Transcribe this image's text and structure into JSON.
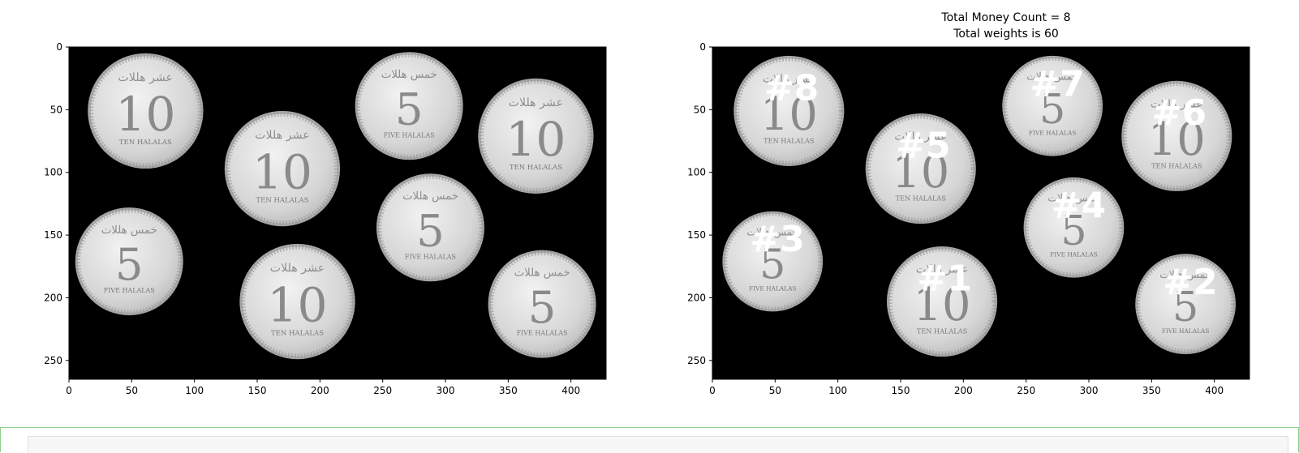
{
  "figure": {
    "title_line1": "Total Money Count = 8",
    "title_line2": "Total weights is 60"
  },
  "coin_text": {
    "ten_caption": "TEN HALALAS",
    "five_caption": "FIVE HALALAS",
    "ten_script": "عشر هللات",
    "five_script": "خمس هللات"
  },
  "colors": {
    "image_background": "#000000",
    "coin_fill": "#d6d6d6",
    "coin_rim": "#a9a9a9",
    "marker_text": "#ffffff",
    "cell_border": "#8fcf8f"
  },
  "chart_data": [
    {
      "type": "image",
      "xlim": [
        0,
        428
      ],
      "ylim": [
        265,
        0
      ],
      "xticks": [
        0,
        50,
        100,
        150,
        200,
        250,
        300,
        350,
        400
      ],
      "yticks": [
        0,
        50,
        100,
        150,
        200,
        250
      ],
      "coins": [
        {
          "value": 10,
          "cx": 61,
          "cy": 51,
          "r": 46
        },
        {
          "value": 10,
          "cx": 170,
          "cy": 97,
          "r": 46
        },
        {
          "value": 5,
          "cx": 271,
          "cy": 47,
          "r": 43
        },
        {
          "value": 10,
          "cx": 372,
          "cy": 71,
          "r": 46
        },
        {
          "value": 5,
          "cx": 48,
          "cy": 171,
          "r": 43
        },
        {
          "value": 5,
          "cx": 288,
          "cy": 144,
          "r": 43
        },
        {
          "value": 10,
          "cx": 182,
          "cy": 203,
          "r": 46
        },
        {
          "value": 5,
          "cx": 377,
          "cy": 205,
          "r": 43
        }
      ]
    },
    {
      "type": "image",
      "xlim": [
        0,
        428
      ],
      "ylim": [
        265,
        0
      ],
      "xticks": [
        0,
        50,
        100,
        150,
        200,
        250,
        300,
        350,
        400
      ],
      "yticks": [
        0,
        50,
        100,
        150,
        200,
        250
      ],
      "coins": [
        {
          "value": 10,
          "cx": 61,
          "cy": 51,
          "r": 44,
          "label": "#8"
        },
        {
          "value": 10,
          "cx": 166,
          "cy": 97,
          "r": 44,
          "label": "#5"
        },
        {
          "value": 5,
          "cx": 271,
          "cy": 47,
          "r": 40,
          "label": "#7"
        },
        {
          "value": 10,
          "cx": 370,
          "cy": 71,
          "r": 44,
          "label": "#6"
        },
        {
          "value": 5,
          "cx": 48,
          "cy": 171,
          "r": 40,
          "label": "#3"
        },
        {
          "value": 5,
          "cx": 288,
          "cy": 144,
          "r": 40,
          "label": "#4"
        },
        {
          "value": 10,
          "cx": 183,
          "cy": 203,
          "r": 44,
          "label": "#1"
        },
        {
          "value": 5,
          "cx": 377,
          "cy": 205,
          "r": 40,
          "label": "#2"
        }
      ]
    }
  ]
}
